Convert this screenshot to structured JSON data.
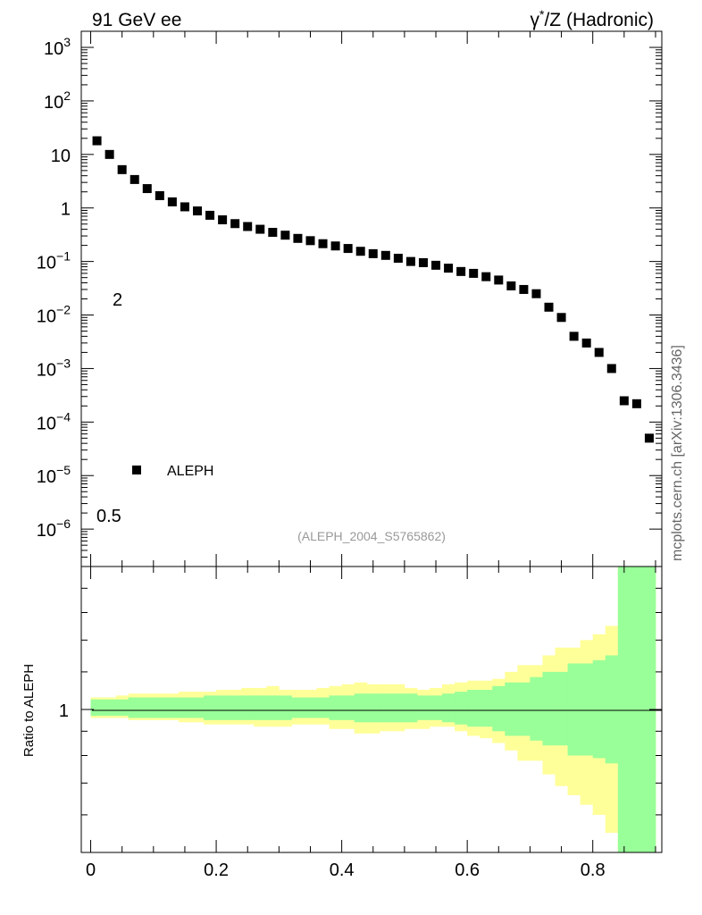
{
  "header": {
    "left": "91 GeV ee",
    "right_prefix": "γ",
    "right_sup": "*",
    "right_suffix": "/Z (Hadronic)"
  },
  "side_label": "mcplots.cern.ch [arXiv:1306.3436]",
  "analysis_id": "(ALEPH_2004_S5765862)",
  "stray_labels": {
    "upper": "2",
    "lower": "0.5"
  },
  "colors": {
    "data": "#000000",
    "band_inner": "#99ff99",
    "band_outer": "#ffff99"
  },
  "chart_data": [
    {
      "type": "scatter",
      "title": "",
      "xlabel": "",
      "ylabel": "",
      "log_y": true,
      "xlim": [
        -0.015,
        0.91
      ],
      "ylim": [
        2e-07,
        2000
      ],
      "y_tick_labels": [
        {
          "base": "10",
          "exp": "3"
        },
        {
          "base": "10",
          "exp": "2"
        },
        {
          "base": "10",
          "exp": ""
        },
        {
          "base": "1",
          "exp": ""
        },
        {
          "base": "10",
          "exp": "−1"
        },
        {
          "base": "10",
          "exp": "−2"
        },
        {
          "base": "10",
          "exp": "−3"
        },
        {
          "base": "10",
          "exp": "−4"
        },
        {
          "base": "10",
          "exp": "−5"
        },
        {
          "base": "10",
          "exp": "−6"
        }
      ],
      "legend": {
        "position": "bottom-left",
        "entries": [
          "ALEPH"
        ]
      },
      "series": [
        {
          "name": "ALEPH",
          "x": [
            0.01,
            0.03,
            0.05,
            0.07,
            0.09,
            0.11,
            0.13,
            0.15,
            0.17,
            0.19,
            0.21,
            0.23,
            0.25,
            0.27,
            0.29,
            0.31,
            0.33,
            0.35,
            0.37,
            0.39,
            0.41,
            0.43,
            0.45,
            0.47,
            0.49,
            0.51,
            0.53,
            0.55,
            0.57,
            0.59,
            0.61,
            0.63,
            0.65,
            0.67,
            0.69,
            0.71,
            0.73,
            0.75,
            0.77,
            0.79,
            0.81,
            0.83,
            0.85,
            0.87,
            0.89
          ],
          "y": [
            18,
            10,
            5.2,
            3.4,
            2.3,
            1.7,
            1.3,
            1.05,
            0.88,
            0.73,
            0.6,
            0.51,
            0.45,
            0.4,
            0.35,
            0.31,
            0.27,
            0.245,
            0.215,
            0.195,
            0.175,
            0.155,
            0.14,
            0.13,
            0.115,
            0.1,
            0.095,
            0.085,
            0.075,
            0.065,
            0.06,
            0.052,
            0.045,
            0.035,
            0.03,
            0.025,
            0.014,
            0.009,
            0.004,
            0.003,
            0.002,
            0.001,
            0.00025,
            0.00022,
            5e-05
          ]
        }
      ]
    },
    {
      "type": "area",
      "title": "",
      "xlabel": "",
      "ylabel": "Ratio to ALEPH",
      "log_y": true,
      "xlim": [
        -0.015,
        0.91
      ],
      "ylim": [
        0.5,
        2
      ],
      "x_ticks": [
        0,
        0.2,
        0.4,
        0.6,
        0.8
      ],
      "x_tick_labels": [
        "0",
        "0.2",
        "0.4",
        "0.6",
        "0.8"
      ],
      "y_ticks": [
        1
      ],
      "y_tick_labels": [
        "1"
      ],
      "bins": [
        0,
        0.02,
        0.04,
        0.06,
        0.08,
        0.1,
        0.12,
        0.14,
        0.16,
        0.18,
        0.2,
        0.22,
        0.24,
        0.26,
        0.28,
        0.3,
        0.32,
        0.34,
        0.36,
        0.38,
        0.4,
        0.42,
        0.44,
        0.46,
        0.48,
        0.5,
        0.52,
        0.54,
        0.56,
        0.58,
        0.6,
        0.62,
        0.64,
        0.66,
        0.68,
        0.7,
        0.72,
        0.74,
        0.76,
        0.78,
        0.8,
        0.82,
        0.84,
        0.86,
        0.88,
        0.9
      ],
      "series": [
        {
          "name": "",
          "upper": [
            1.05,
            1.05,
            1.05,
            1.06,
            1.06,
            1.06,
            1.06,
            1.06,
            1.06,
            1.07,
            1.07,
            1.07,
            1.07,
            1.07,
            1.07,
            1.07,
            1.06,
            1.06,
            1.06,
            1.07,
            1.07,
            1.08,
            1.08,
            1.08,
            1.08,
            1.08,
            1.07,
            1.07,
            1.08,
            1.09,
            1.1,
            1.1,
            1.12,
            1.14,
            1.14,
            1.17,
            1.2,
            1.2,
            1.25,
            1.25,
            1.27,
            1.3,
            2.0,
            2.0,
            2.0
          ],
          "lower": [
            0.97,
            0.97,
            0.97,
            0.96,
            0.96,
            0.96,
            0.96,
            0.96,
            0.96,
            0.95,
            0.95,
            0.95,
            0.95,
            0.95,
            0.95,
            0.95,
            0.96,
            0.96,
            0.96,
            0.95,
            0.95,
            0.94,
            0.94,
            0.94,
            0.94,
            0.94,
            0.95,
            0.95,
            0.94,
            0.93,
            0.92,
            0.92,
            0.9,
            0.88,
            0.88,
            0.86,
            0.84,
            0.84,
            0.8,
            0.8,
            0.79,
            0.77,
            0.5,
            0.5,
            0.5
          ]
        },
        {
          "name": "",
          "upper": [
            1.06,
            1.06,
            1.07,
            1.08,
            1.08,
            1.08,
            1.08,
            1.09,
            1.09,
            1.09,
            1.1,
            1.1,
            1.11,
            1.11,
            1.12,
            1.1,
            1.1,
            1.1,
            1.11,
            1.12,
            1.13,
            1.14,
            1.13,
            1.13,
            1.13,
            1.11,
            1.1,
            1.11,
            1.13,
            1.14,
            1.15,
            1.15,
            1.16,
            1.2,
            1.24,
            1.24,
            1.3,
            1.35,
            1.35,
            1.4,
            1.44,
            1.5,
            2.0,
            2.0,
            2.0
          ],
          "lower": [
            0.96,
            0.96,
            0.96,
            0.95,
            0.95,
            0.95,
            0.95,
            0.94,
            0.94,
            0.93,
            0.93,
            0.93,
            0.93,
            0.92,
            0.92,
            0.92,
            0.93,
            0.93,
            0.93,
            0.91,
            0.91,
            0.89,
            0.89,
            0.9,
            0.9,
            0.91,
            0.91,
            0.92,
            0.92,
            0.9,
            0.88,
            0.87,
            0.85,
            0.82,
            0.78,
            0.78,
            0.73,
            0.69,
            0.66,
            0.63,
            0.6,
            0.55,
            0.5,
            0.5,
            0.5
          ]
        }
      ]
    }
  ]
}
